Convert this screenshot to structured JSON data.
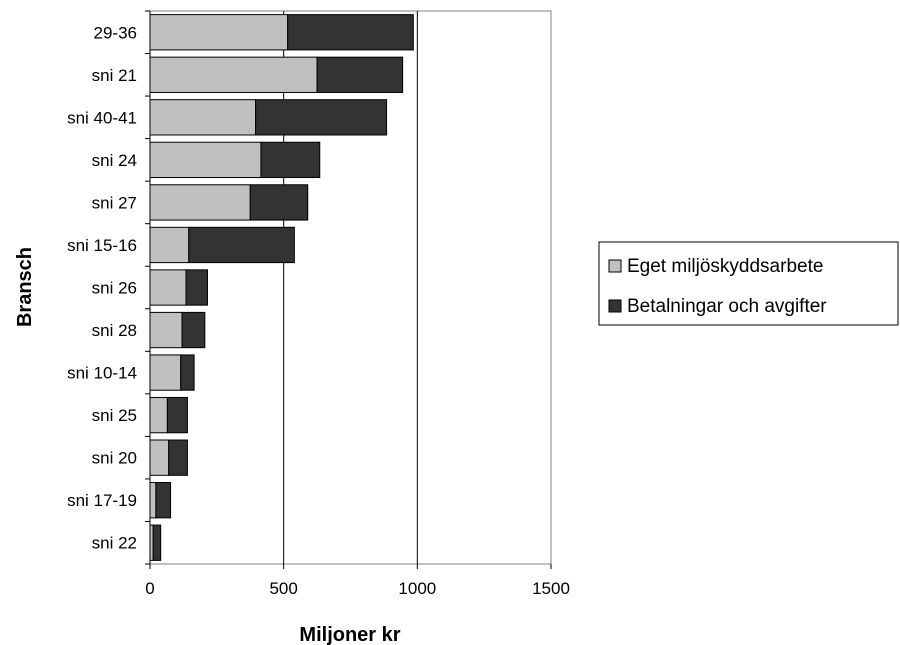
{
  "chart_data": {
    "type": "bar",
    "orientation": "horizontal",
    "stacked": true,
    "title": "",
    "xlabel": "Miljoner kr",
    "ylabel": "Bransch",
    "xlim": [
      0,
      1500
    ],
    "xticks": [
      0,
      500,
      1000,
      1500
    ],
    "grid": "vertical gridlines at 500 and 1000",
    "legend_position": "right",
    "categories": [
      "29-36",
      "sni 21",
      "sni 40-41",
      "sni 24",
      "sni 27",
      "sni 15-16",
      "sni 26",
      "sni 28",
      "sni 10-14",
      "sni 25",
      "sni 20",
      "sni 17-19",
      "sni 22"
    ],
    "series": [
      {
        "name": "Eget miljöskyddsarbete",
        "color": "#c0c0c0",
        "values": [
          515,
          625,
          395,
          415,
          375,
          145,
          135,
          120,
          115,
          65,
          70,
          22,
          12
        ]
      },
      {
        "name": "Betalningar och avgifter",
        "color": "#333333",
        "values": [
          470,
          320,
          490,
          220,
          215,
          395,
          80,
          85,
          50,
          75,
          70,
          55,
          28
        ]
      }
    ]
  }
}
